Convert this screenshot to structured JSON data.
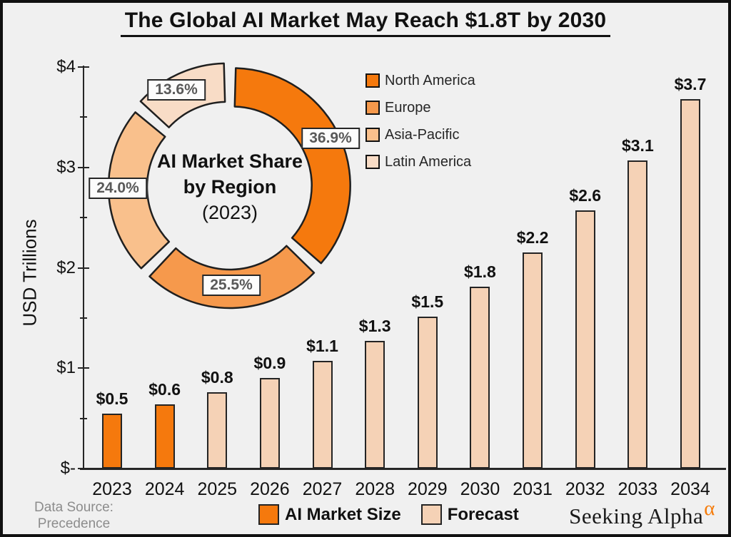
{
  "page": {
    "title": "The Global AI Market May Reach $1.8T by 2030",
    "background": "#F0F0F0"
  },
  "chart_data": [
    {
      "type": "bar",
      "title": "The Global AI Market May Reach $1.8T by 2030",
      "xlabel": "",
      "ylabel": "USD Trillions",
      "ylim": [
        0,
        4
      ],
      "grid": false,
      "categories": [
        "2023",
        "2024",
        "2025",
        "2026",
        "2027",
        "2028",
        "2029",
        "2030",
        "2031",
        "2032",
        "2033",
        "2034"
      ],
      "values": [
        0.5,
        0.6,
        0.8,
        0.9,
        1.1,
        1.3,
        1.5,
        1.8,
        2.2,
        2.6,
        3.1,
        3.7
      ],
      "y_ticks": [
        {
          "label": "$4",
          "value": 4
        },
        {
          "label": "$3",
          "value": 3
        },
        {
          "label": "$2",
          "value": 2
        },
        {
          "label": "$1",
          "value": 1
        },
        {
          "label": "$-",
          "value": 0
        }
      ],
      "minor_tick_step": 0.5,
      "bars": [
        {
          "year": "2023",
          "label": "$0.5",
          "value": 0.5,
          "height_t": 0.55,
          "series": "AI Market Size"
        },
        {
          "year": "2024",
          "label": "$0.6",
          "value": 0.6,
          "height_t": 0.64,
          "series": "AI Market Size"
        },
        {
          "year": "2025",
          "label": "$0.8",
          "value": 0.8,
          "height_t": 0.76,
          "series": "Forecast"
        },
        {
          "year": "2026",
          "label": "$0.9",
          "value": 0.9,
          "height_t": 0.9,
          "series": "Forecast"
        },
        {
          "year": "2027",
          "label": "$1.1",
          "value": 1.1,
          "height_t": 1.07,
          "series": "Forecast"
        },
        {
          "year": "2028",
          "label": "$1.3",
          "value": 1.3,
          "height_t": 1.27,
          "series": "Forecast"
        },
        {
          "year": "2029",
          "label": "$1.5",
          "value": 1.5,
          "height_t": 1.51,
          "series": "Forecast"
        },
        {
          "year": "2030",
          "label": "$1.8",
          "value": 1.8,
          "height_t": 1.81,
          "series": "Forecast"
        },
        {
          "year": "2031",
          "label": "$2.2",
          "value": 2.2,
          "height_t": 2.15,
          "series": "Forecast"
        },
        {
          "year": "2032",
          "label": "$2.6",
          "value": 2.6,
          "height_t": 2.57,
          "series": "Forecast"
        },
        {
          "year": "2033",
          "label": "$3.1",
          "value": 3.1,
          "height_t": 3.07,
          "series": "Forecast"
        },
        {
          "year": "2034",
          "label": "$3.7",
          "value": 3.7,
          "height_t": 3.68,
          "series": "Forecast"
        }
      ],
      "legend": [
        {
          "label": "AI Market Size",
          "color": "#F5790D"
        },
        {
          "label": "Forecast",
          "color": "#F5D2B6"
        }
      ],
      "legend_position": "bottom"
    },
    {
      "type": "pie",
      "subtype": "donut",
      "center_lines": [
        "AI Market Share",
        "by Region",
        "(2023)"
      ],
      "slices": [
        {
          "label": "North America",
          "value": 36.9,
          "display": "36.9%",
          "color": "#F5790D"
        },
        {
          "label": "Europe",
          "value": 25.5,
          "display": "25.5%",
          "color": "#F6994C"
        },
        {
          "label": "Asia-Pacific",
          "value": 24.0,
          "display": "24.0%",
          "color": "#F9C08C"
        },
        {
          "label": "Latin America",
          "value": 13.6,
          "display": "13.6%",
          "color": "#F8DCC6"
        }
      ],
      "legend_position": "right"
    }
  ],
  "footer": {
    "data_source_line1": "Data Source:",
    "data_source_line2": "Precedence Research",
    "brand": "Seeking Alpha",
    "brand_symbol": "α",
    "brand_symbol_color": "#F57C0B"
  }
}
